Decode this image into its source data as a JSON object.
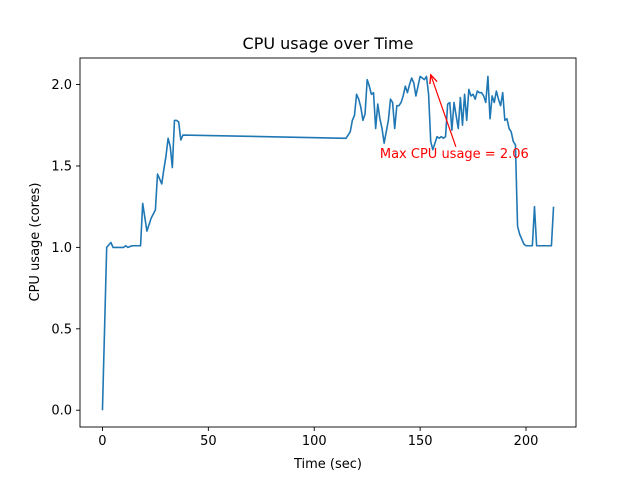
{
  "chart_data": {
    "type": "line",
    "title": "CPU usage over Time",
    "xlabel": "Time (sec)",
    "ylabel": "CPU usage (cores)",
    "xlim": [
      -10.6,
      223.6
    ],
    "ylim": [
      -0.103,
      2.163
    ],
    "xticks": [
      0,
      50,
      100,
      150,
      200
    ],
    "yticks": [
      0.0,
      0.5,
      1.0,
      1.5,
      2.0
    ],
    "xtick_labels": [
      "0",
      "50",
      "100",
      "150",
      "200"
    ],
    "ytick_labels": [
      "0.0",
      "0.5",
      "1.0",
      "1.5",
      "2.0"
    ],
    "grid": false,
    "line_color": "#1f77b4",
    "annotation": {
      "text": "Max CPU usage = 2.06",
      "color": "#ff0000",
      "point": [
        155,
        2.06
      ],
      "text_pos": [
        131,
        1.55
      ]
    },
    "series": [
      {
        "x": [
          0,
          1,
          2,
          4,
          5,
          7,
          9,
          10,
          11,
          12,
          14,
          16,
          18,
          19,
          21,
          23,
          25,
          26,
          27,
          28,
          29,
          30,
          31,
          32,
          33,
          34,
          35,
          36,
          37,
          38,
          115,
          116,
          117,
          118,
          119,
          120,
          121,
          122,
          123,
          124,
          125,
          126,
          127,
          128,
          129,
          130,
          131,
          132,
          133,
          134,
          135,
          136,
          137,
          138,
          139,
          140,
          141,
          142,
          143,
          144,
          145,
          146,
          147,
          148,
          149,
          150,
          151,
          152,
          153,
          154,
          155,
          156,
          157,
          158,
          159,
          160,
          161,
          162,
          163,
          164,
          165,
          166,
          167,
          168,
          169,
          170,
          171,
          172,
          173,
          174,
          175,
          176,
          177,
          178,
          179,
          180,
          181,
          182,
          183,
          184,
          185,
          186,
          187,
          188,
          189,
          190,
          191,
          192,
          193,
          194,
          195,
          196,
          197,
          198,
          199,
          200,
          201,
          202,
          203,
          204,
          205,
          206,
          207,
          208,
          209,
          210,
          211,
          212,
          213
        ],
        "y": [
          0.0,
          0.5,
          1.0,
          1.03,
          1.0,
          1.0,
          1.0,
          1.0,
          1.01,
          1.0,
          1.01,
          1.01,
          1.01,
          1.27,
          1.1,
          1.18,
          1.23,
          1.45,
          1.42,
          1.39,
          1.48,
          1.56,
          1.67,
          1.62,
          1.49,
          1.78,
          1.78,
          1.77,
          1.66,
          1.69,
          1.67,
          1.69,
          1.71,
          1.78,
          1.81,
          1.94,
          1.91,
          1.86,
          1.78,
          1.82,
          2.03,
          1.99,
          1.94,
          1.95,
          1.73,
          1.88,
          1.79,
          1.73,
          1.64,
          1.71,
          1.78,
          1.91,
          1.89,
          1.73,
          1.87,
          1.87,
          1.89,
          1.93,
          1.99,
          1.95,
          2.0,
          2.04,
          2.01,
          1.93,
          1.99,
          2.05,
          2.04,
          2.03,
          2.05,
          1.94,
          1.65,
          1.6,
          1.64,
          1.68,
          1.67,
          1.68,
          1.67,
          1.68,
          1.88,
          1.89,
          1.72,
          1.89,
          1.81,
          1.73,
          1.92,
          1.75,
          1.94,
          1.78,
          1.97,
          1.93,
          1.94,
          1.91,
          1.96,
          1.95,
          1.95,
          1.93,
          1.89,
          2.05,
          1.79,
          1.93,
          1.89,
          1.96,
          1.91,
          1.87,
          1.95,
          1.78,
          1.79,
          1.73,
          1.71,
          1.65,
          1.63,
          1.13,
          1.08,
          1.05,
          1.02,
          1.01,
          1.01,
          1.01,
          1.01,
          1.25,
          1.01,
          1.01,
          1.01,
          1.01,
          1.01,
          1.01,
          1.01,
          1.01,
          1.25
        ]
      }
    ]
  }
}
